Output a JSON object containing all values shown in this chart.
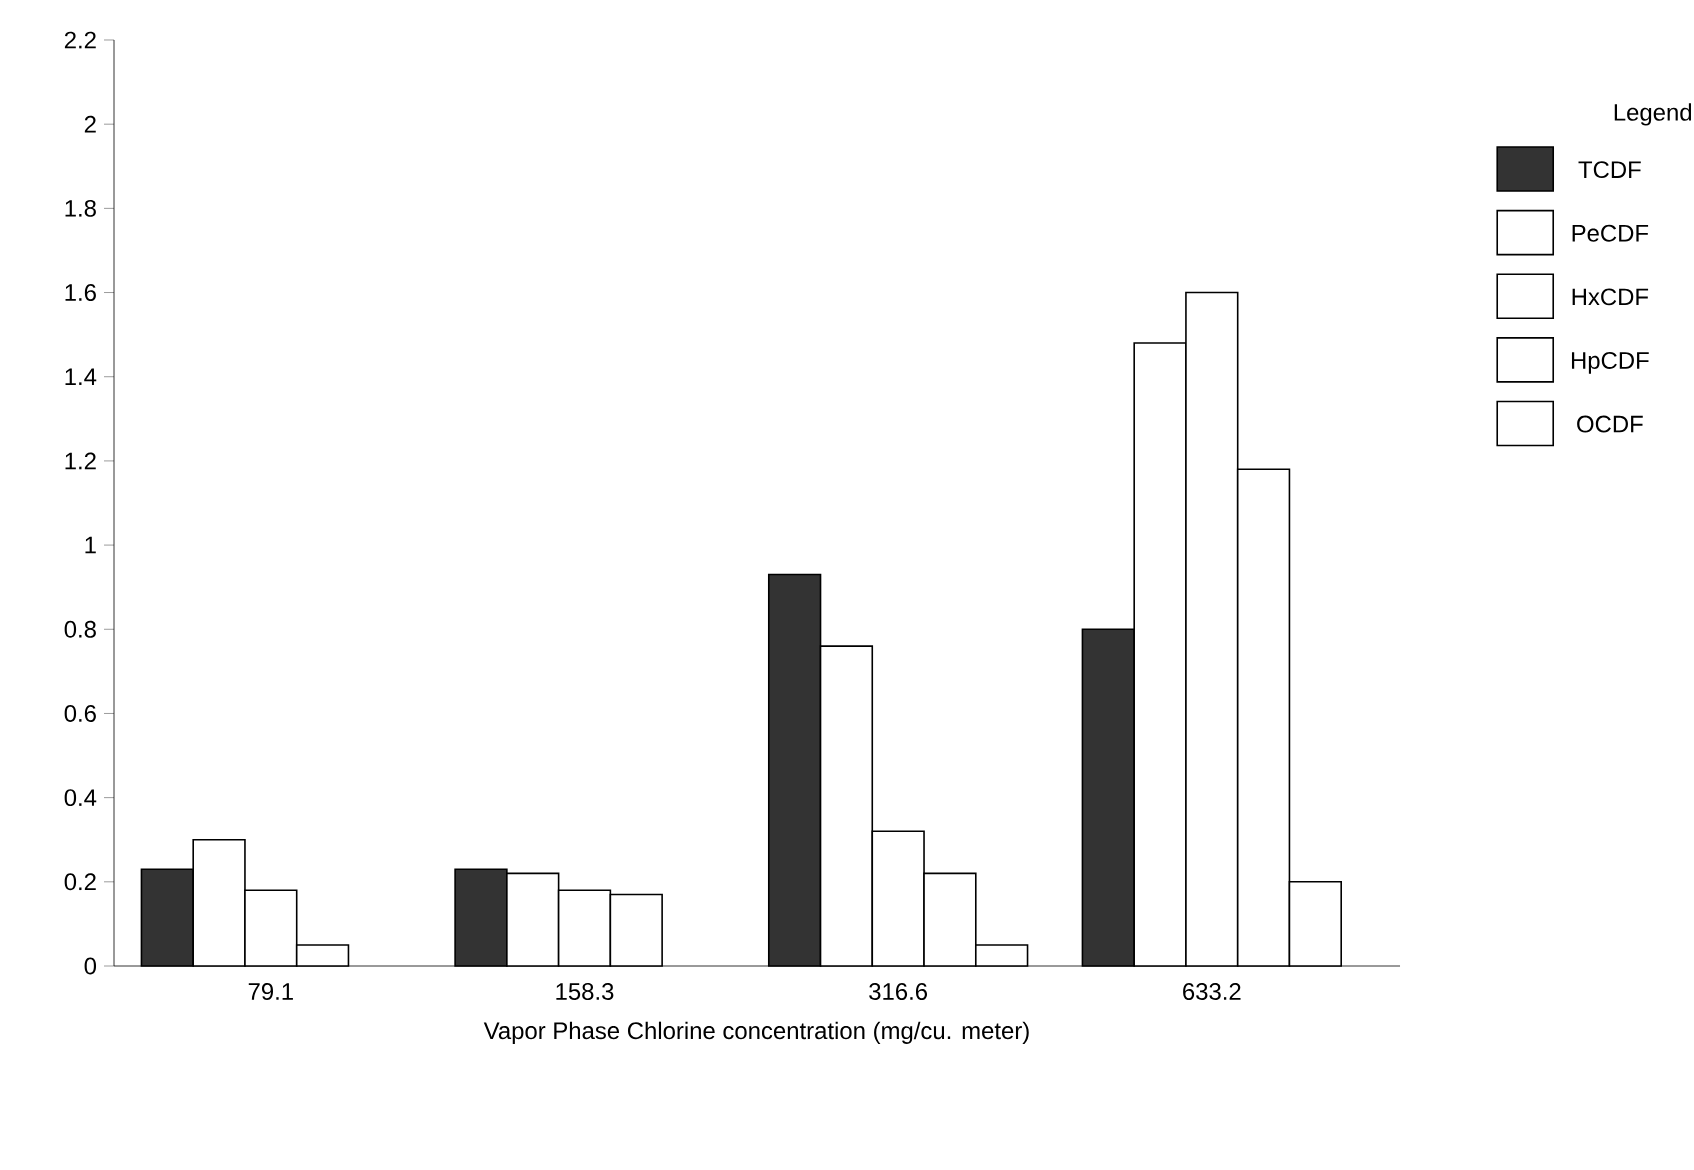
{
  "chart_data": {
    "type": "bar",
    "xlabel": "Vapor Phase Chlorine concentration (mg/cu. meter)",
    "legend_title": "Legend",
    "categories": [
      "79.1",
      "158.3",
      "316.6",
      "633.2"
    ],
    "series": [
      {
        "name": "TCDF",
        "color": "#333333",
        "values": [
          0.23,
          0.23,
          0.93,
          0.8
        ]
      },
      {
        "name": "PeCDF",
        "color": "#ffffff",
        "values": [
          0.3,
          0.22,
          0.76,
          1.48
        ]
      },
      {
        "name": "HxCDF",
        "color": "#ffffff",
        "values": [
          0.18,
          0.18,
          0.32,
          1.6
        ]
      },
      {
        "name": "HpCDF",
        "color": "#ffffff",
        "values": [
          0.05,
          0.17,
          0.22,
          1.18
        ]
      },
      {
        "name": "OCDF",
        "color": "#ffffff",
        "values": [
          0,
          0,
          0.05,
          0.2
        ]
      }
    ],
    "ylim": [
      0,
      2.2
    ],
    "yticks": [
      0,
      0.2,
      0.4,
      0.6,
      0.8,
      1,
      1.2,
      1.4,
      1.6,
      1.8,
      2,
      2.2
    ],
    "grid": false,
    "legend": "right"
  }
}
